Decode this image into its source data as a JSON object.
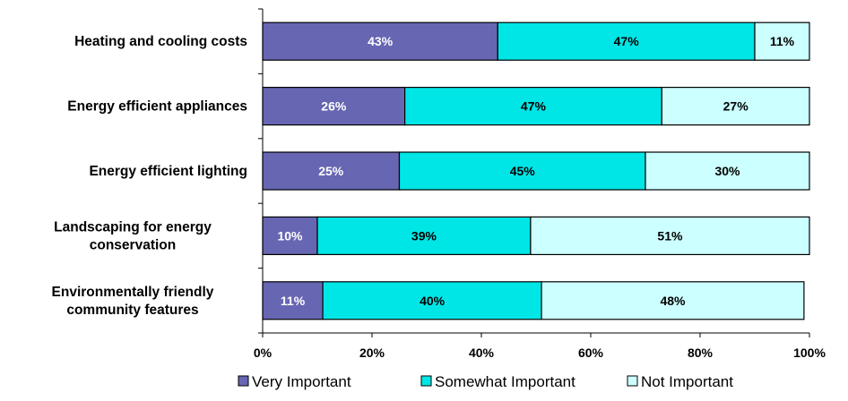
{
  "chart_data": {
    "type": "bar",
    "orientation": "horizontal",
    "stacked": "percent",
    "categories": [
      [
        "Heating and cooling costs"
      ],
      [
        "Energy efficient appliances"
      ],
      [
        "Energy efficient lighting"
      ],
      [
        "Landscaping for energy",
        "conservation"
      ],
      [
        "Environmentally friendly",
        "community features"
      ]
    ],
    "series": [
      {
        "name": "Very Important",
        "color": "#6666b3",
        "label_color": "#ffffff",
        "values": [
          43,
          26,
          25,
          10,
          11
        ]
      },
      {
        "name": "Somewhat Important",
        "color": "#00e6e6",
        "label_color": "#000000",
        "values": [
          47,
          47,
          45,
          39,
          40
        ]
      },
      {
        "name": "Not Important",
        "color": "#ccffff",
        "label_color": "#000000",
        "values": [
          11,
          27,
          30,
          51,
          48
        ]
      }
    ],
    "xlim": [
      0,
      100
    ],
    "xticks": [
      "0%",
      "20%",
      "40%",
      "60%",
      "80%",
      "100%"
    ],
    "legend_position": "bottom",
    "grid": false
  }
}
